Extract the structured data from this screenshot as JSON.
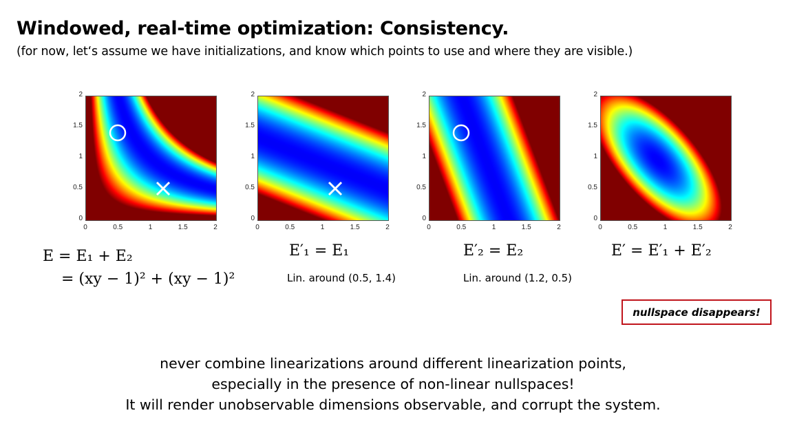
{
  "slide": {
    "title": "Windowed, real-time optimization: Consistency.",
    "subtitle": "(for now, let‘s assume we have initializations, and know which points to use and where they are visible.)",
    "callout": "nullspace disappears!",
    "callout_color": "#c0141b",
    "bottom_lines": [
      "never combine linearizations around different linearization points,",
      "especially in the presence of non-linear nullspaces!",
      "It will render unobservable dimensions observable, and corrupt the system."
    ]
  },
  "captions": {
    "plot1_line1": "E = E₁ + E₂",
    "plot1_line2": "= (xy − 1)² + (xy − 1)²",
    "plot2_formula": "E′₁ = E₁",
    "plot2_lin": "Lin. around (0.5, 1.4)",
    "plot3_formula": "E′₂ = E₂",
    "plot3_lin": "Lin. around (1.2, 0.5)",
    "plot4_formula": "E′ = E′₁ + E′₂"
  },
  "chart_data": [
    {
      "type": "heatmap",
      "name": "E",
      "function": "2*(x*y-1)^2",
      "xlim": [
        0,
        2
      ],
      "ylim": [
        0,
        2
      ],
      "xticks": [
        "0",
        "0.5",
        "1",
        "1.5",
        "2"
      ],
      "yticks": [
        "0",
        "0.5",
        "1",
        "1.5",
        "2"
      ],
      "colormap": "jet",
      "markers": [
        {
          "shape": "circle",
          "x": 0.5,
          "y": 1.4
        },
        {
          "shape": "cross",
          "x": 1.2,
          "y": 0.5
        }
      ]
    },
    {
      "type": "heatmap",
      "name": "E1'",
      "function": "(0.5*x+1.2*y-1.6)^2",
      "xlim": [
        0,
        2
      ],
      "ylim": [
        0,
        2
      ],
      "xticks": [
        "0",
        "0.5",
        "1",
        "1.5",
        "2"
      ],
      "yticks": [
        "0",
        "0.5",
        "1",
        "1.5",
        "2"
      ],
      "colormap": "jet",
      "markers": [
        {
          "shape": "cross",
          "x": 1.2,
          "y": 0.5
        }
      ]
    },
    {
      "type": "heatmap",
      "name": "E2'",
      "function": "(1.4*x+0.5*y-1.7)^2",
      "xlim": [
        0,
        2
      ],
      "ylim": [
        0,
        2
      ],
      "xticks": [
        "0",
        "0.5",
        "1",
        "1.5",
        "2"
      ],
      "yticks": [
        "0",
        "0.5",
        "1",
        "1.5",
        "2"
      ],
      "colormap": "jet",
      "markers": [
        {
          "shape": "circle",
          "x": 0.5,
          "y": 1.4
        }
      ]
    },
    {
      "type": "heatmap",
      "name": "E'",
      "function": "(0.5*x+1.2*y-1.6)^2 + (1.4*x+0.5*y-1.7)^2",
      "xlim": [
        0,
        2
      ],
      "ylim": [
        0,
        2
      ],
      "xticks": [
        "0",
        "0.5",
        "1",
        "1.5",
        "2"
      ],
      "yticks": [
        "0",
        "0.5",
        "1",
        "1.5",
        "2"
      ],
      "colormap": "jet",
      "markers": []
    }
  ]
}
